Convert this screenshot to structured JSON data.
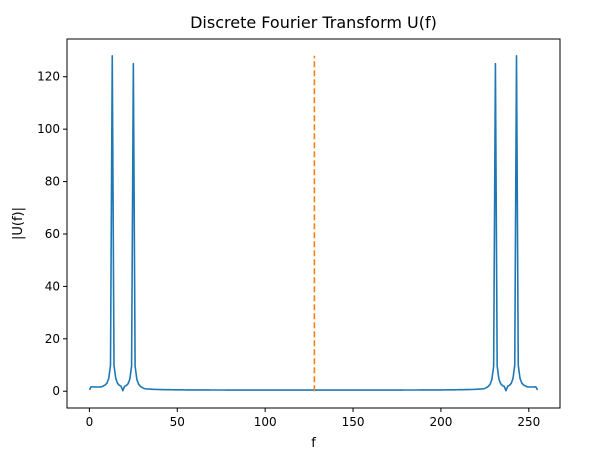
{
  "chart_data": {
    "type": "line",
    "title": "Discrete Fourier Transform U(f)",
    "xlabel": "f",
    "ylabel": "|U(f)|",
    "xlim": [
      -12.75,
      267.75
    ],
    "ylim": [
      -6.4,
      134.4
    ],
    "xticks": [
      0,
      50,
      100,
      150,
      200,
      250
    ],
    "yticks": [
      0,
      20,
      40,
      60,
      80,
      100,
      120
    ],
    "grid": false,
    "series": [
      {
        "color": "#1f77b4",
        "style": "solid",
        "peaks": [
          {
            "f": 13,
            "value": 128
          },
          {
            "f": 25,
            "value": 125
          },
          {
            "f": 231,
            "value": 125
          },
          {
            "f": 243,
            "value": 128
          }
        ],
        "baseline_min": 0.45,
        "dip_between_peaks": 0.2,
        "x_range": [
          0,
          255
        ]
      },
      {
        "color": "#ff7f0e",
        "style": "dashed",
        "x": [
          128,
          128
        ],
        "y": [
          0,
          128
        ]
      }
    ]
  }
}
